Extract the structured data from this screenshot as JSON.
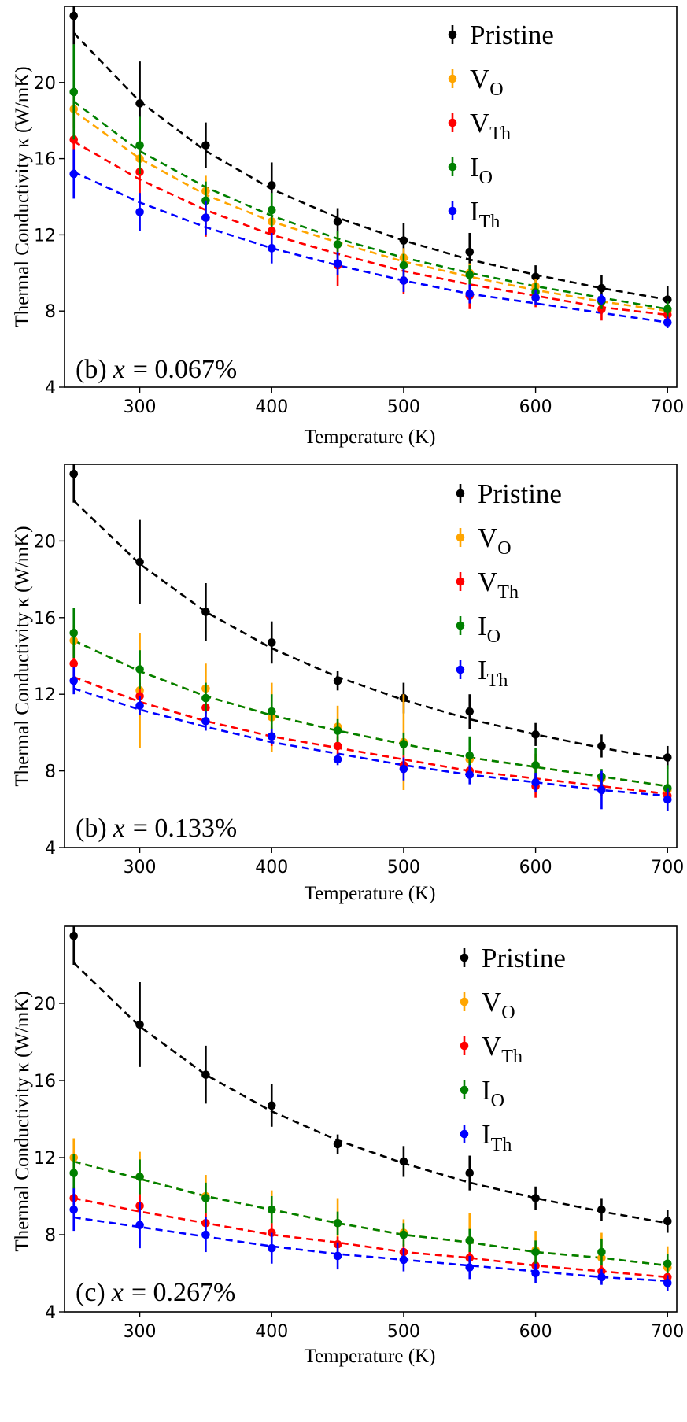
{
  "chart_data": [
    {
      "type": "scatter",
      "panel_label": "(b)",
      "panel_var": "x",
      "panel_value": "= 0.067%",
      "xlabel": "Temperature (K)",
      "ylabel": "Thermal Conductivity κ (W/mK)",
      "xlim": [
        243,
        707
      ],
      "ylim": [
        4,
        24
      ],
      "xticks": [
        300,
        400,
        500,
        600,
        700
      ],
      "yticks": [
        4,
        8,
        12,
        16,
        20
      ],
      "legend_position": "top-right",
      "x": [
        250,
        300,
        350,
        400,
        450,
        500,
        550,
        600,
        650,
        700
      ],
      "series": [
        {
          "name": "Pristine",
          "base": "Pristine",
          "sub": "",
          "color": "#000000",
          "values": [
            23.5,
            18.9,
            16.7,
            14.6,
            12.7,
            11.7,
            11.1,
            9.8,
            9.2,
            8.6
          ],
          "errors": [
            1.5,
            2.2,
            1.2,
            1.2,
            0.7,
            0.9,
            1.0,
            0.6,
            0.7,
            0.7
          ],
          "fit": [
            22.6,
            19.0,
            16.4,
            14.4,
            12.9,
            11.7,
            10.7,
            9.9,
            9.2,
            8.6
          ]
        },
        {
          "name": "VO",
          "base": "V",
          "sub": "O",
          "color": "#ffa500",
          "values": [
            18.6,
            16.0,
            14.3,
            12.7,
            11.5,
            10.8,
            10.0,
            9.3,
            8.5,
            8.0
          ],
          "errors": [
            1.0,
            1.0,
            0.8,
            0.7,
            0.6,
            0.5,
            0.5,
            0.4,
            0.4,
            0.4
          ],
          "fit": [
            18.5,
            16.0,
            14.1,
            12.7,
            11.6,
            10.6,
            9.8,
            9.1,
            8.5,
            8.0
          ]
        },
        {
          "name": "VTh",
          "base": "V",
          "sub": "Th",
          "color": "#ff0000",
          "values": [
            17.0,
            15.3,
            12.9,
            12.2,
            10.4,
            9.6,
            8.8,
            8.7,
            8.1,
            7.8
          ],
          "errors": [
            1.6,
            1.5,
            1.0,
            0.8,
            1.1,
            0.7,
            0.7,
            0.5,
            0.6,
            0.4
          ],
          "fit": [
            16.9,
            14.9,
            13.3,
            12.0,
            11.0,
            10.1,
            9.4,
            8.8,
            8.2,
            7.8
          ]
        },
        {
          "name": "IO",
          "base": "I",
          "sub": "O",
          "color": "#008000",
          "values": [
            19.5,
            16.7,
            13.8,
            13.3,
            11.5,
            10.4,
            9.9,
            9.0,
            8.5,
            8.1
          ],
          "errors": [
            2.5,
            1.5,
            1.0,
            0.9,
            0.7,
            0.6,
            0.5,
            0.5,
            0.4,
            0.4
          ],
          "fit": [
            19.0,
            16.4,
            14.5,
            13.0,
            11.8,
            10.8,
            10.0,
            9.3,
            8.7,
            8.1
          ]
        },
        {
          "name": "ITh",
          "base": "I",
          "sub": "Th",
          "color": "#0000ff",
          "values": [
            15.2,
            13.2,
            12.9,
            11.3,
            10.5,
            9.6,
            8.9,
            8.7,
            8.6,
            7.4
          ],
          "errors": [
            1.3,
            1.0,
            0.9,
            0.8,
            0.6,
            0.6,
            0.5,
            0.4,
            0.3,
            0.3
          ],
          "fit": [
            15.3,
            13.7,
            12.4,
            11.3,
            10.4,
            9.6,
            8.9,
            8.4,
            7.9,
            7.4
          ]
        }
      ]
    },
    {
      "type": "scatter",
      "panel_label": "(b)",
      "panel_var": "x",
      "panel_value": "= 0.133%",
      "xlabel": "Temperature (K)",
      "ylabel": "Thermal Conductivity κ (W/mK)",
      "xlim": [
        243,
        707
      ],
      "ylim": [
        4,
        24
      ],
      "xticks": [
        300,
        400,
        500,
        600,
        700
      ],
      "yticks": [
        4,
        8,
        12,
        16,
        20
      ],
      "legend_position": "top-right",
      "x": [
        250,
        300,
        350,
        400,
        450,
        500,
        550,
        600,
        650,
        700
      ],
      "series": [
        {
          "name": "Pristine",
          "base": "Pristine",
          "sub": "",
          "color": "#000000",
          "values": [
            23.5,
            18.9,
            16.3,
            14.7,
            12.7,
            11.8,
            11.1,
            9.9,
            9.3,
            8.7
          ],
          "errors": [
            1.5,
            2.2,
            1.5,
            1.1,
            0.5,
            0.8,
            0.9,
            0.6,
            0.6,
            0.6
          ],
          "fit": [
            22.1,
            18.8,
            16.3,
            14.4,
            12.9,
            11.7,
            10.7,
            9.9,
            9.2,
            8.6
          ]
        },
        {
          "name": "VO",
          "base": "V",
          "sub": "O",
          "color": "#ffa500",
          "values": [
            14.8,
            12.2,
            12.3,
            10.8,
            10.3,
            9.5,
            8.6,
            8.3,
            7.6,
            7.0
          ],
          "errors": [
            0.8,
            3.0,
            1.3,
            1.8,
            1.1,
            2.5,
            0.6,
            0.6,
            0.4,
            0.5
          ],
          "fit": [
            14.8,
            13.2,
            11.9,
            10.9,
            10.1,
            9.4,
            8.7,
            8.2,
            7.7,
            7.2
          ]
        },
        {
          "name": "VTh",
          "base": "V",
          "sub": "Th",
          "color": "#ff0000",
          "values": [
            13.6,
            11.9,
            11.3,
            9.8,
            9.3,
            8.3,
            8.0,
            7.2,
            7.1,
            6.7
          ],
          "errors": [
            0.9,
            0.7,
            0.6,
            0.5,
            0.5,
            0.5,
            0.5,
            0.6,
            0.4,
            0.4
          ],
          "fit": [
            12.9,
            11.6,
            10.6,
            9.8,
            9.2,
            8.6,
            8.0,
            7.6,
            7.2,
            6.8
          ]
        },
        {
          "name": "IO",
          "base": "I",
          "sub": "O",
          "color": "#008000",
          "values": [
            15.2,
            13.3,
            11.8,
            11.1,
            10.1,
            9.4,
            8.8,
            8.3,
            7.7,
            7.1
          ],
          "errors": [
            1.3,
            1.0,
            0.8,
            0.9,
            0.6,
            0.6,
            1.0,
            0.9,
            0.4,
            1.2
          ],
          "fit": [
            14.8,
            13.2,
            11.9,
            10.9,
            10.1,
            9.4,
            8.7,
            8.2,
            7.7,
            7.2
          ]
        },
        {
          "name": "ITh",
          "base": "I",
          "sub": "Th",
          "color": "#0000ff",
          "values": [
            12.7,
            11.4,
            10.6,
            9.8,
            8.6,
            8.1,
            7.8,
            7.4,
            7.0,
            6.5
          ],
          "errors": [
            0.7,
            0.5,
            0.5,
            0.4,
            0.3,
            0.6,
            0.5,
            0.5,
            1.0,
            0.6
          ],
          "fit": [
            12.3,
            11.2,
            10.3,
            9.5,
            8.9,
            8.3,
            7.8,
            7.4,
            7.0,
            6.7
          ]
        }
      ]
    },
    {
      "type": "scatter",
      "panel_label": "(c)",
      "panel_var": "x",
      "panel_value": "= 0.267%",
      "xlabel": "Temperature (K)",
      "ylabel": "Thermal Conductivity κ (W/mK)",
      "xlim": [
        243,
        707
      ],
      "ylim": [
        4,
        24
      ],
      "xticks": [
        300,
        400,
        500,
        600,
        700
      ],
      "yticks": [
        4,
        8,
        12,
        16,
        20
      ],
      "legend_position": "top-right",
      "x": [
        250,
        300,
        350,
        400,
        450,
        500,
        550,
        600,
        650,
        700
      ],
      "series": [
        {
          "name": "Pristine",
          "base": "Pristine",
          "sub": "",
          "color": "#000000",
          "values": [
            23.5,
            18.9,
            16.3,
            14.7,
            12.7,
            11.8,
            11.2,
            9.9,
            9.3,
            8.7
          ],
          "errors": [
            1.5,
            2.2,
            1.5,
            1.1,
            0.5,
            0.8,
            0.9,
            0.6,
            0.6,
            0.6
          ],
          "fit": [
            22.1,
            18.8,
            16.3,
            14.4,
            12.9,
            11.7,
            10.7,
            9.9,
            9.2,
            8.6
          ]
        },
        {
          "name": "VO",
          "base": "V",
          "sub": "O",
          "color": "#ffa500",
          "values": [
            12.0,
            11.0,
            10.0,
            9.3,
            8.6,
            8.1,
            7.7,
            7.2,
            6.8,
            6.3
          ],
          "errors": [
            1.0,
            1.3,
            1.1,
            1.0,
            1.3,
            0.7,
            1.4,
            1.0,
            1.3,
            1.1
          ],
          "fit": [
            11.8,
            10.9,
            10.0,
            9.3,
            8.6,
            8.0,
            7.6,
            7.1,
            6.8,
            6.4
          ]
        },
        {
          "name": "VTh",
          "base": "V",
          "sub": "Th",
          "color": "#ff0000",
          "values": [
            9.9,
            9.5,
            8.6,
            8.1,
            7.5,
            7.1,
            6.8,
            6.4,
            6.1,
            5.8
          ],
          "errors": [
            0.6,
            0.6,
            0.5,
            0.5,
            0.4,
            0.4,
            0.4,
            0.3,
            0.3,
            0.3
          ],
          "fit": [
            9.9,
            9.2,
            8.6,
            8.0,
            7.6,
            7.1,
            6.8,
            6.4,
            6.1,
            5.8
          ]
        },
        {
          "name": "IO",
          "base": "I",
          "sub": "O",
          "color": "#008000",
          "values": [
            11.2,
            11.0,
            9.9,
            9.3,
            8.6,
            8.0,
            7.7,
            7.1,
            7.1,
            6.5
          ],
          "errors": [
            1.0,
            0.9,
            0.8,
            0.7,
            0.6,
            0.6,
            0.6,
            0.6,
            0.7,
            0.5
          ],
          "fit": [
            11.8,
            10.9,
            10.0,
            9.3,
            8.6,
            8.0,
            7.6,
            7.1,
            6.8,
            6.4
          ]
        },
        {
          "name": "ITh",
          "base": "I",
          "sub": "Th",
          "color": "#0000ff",
          "values": [
            9.3,
            8.5,
            8.0,
            7.3,
            6.9,
            6.7,
            6.3,
            6.0,
            5.8,
            5.5
          ],
          "errors": [
            1.1,
            1.2,
            0.9,
            0.8,
            0.7,
            0.6,
            0.6,
            0.5,
            0.4,
            0.4
          ],
          "fit": [
            8.9,
            8.4,
            7.9,
            7.4,
            7.0,
            6.7,
            6.4,
            6.1,
            5.8,
            5.6
          ]
        }
      ]
    }
  ]
}
